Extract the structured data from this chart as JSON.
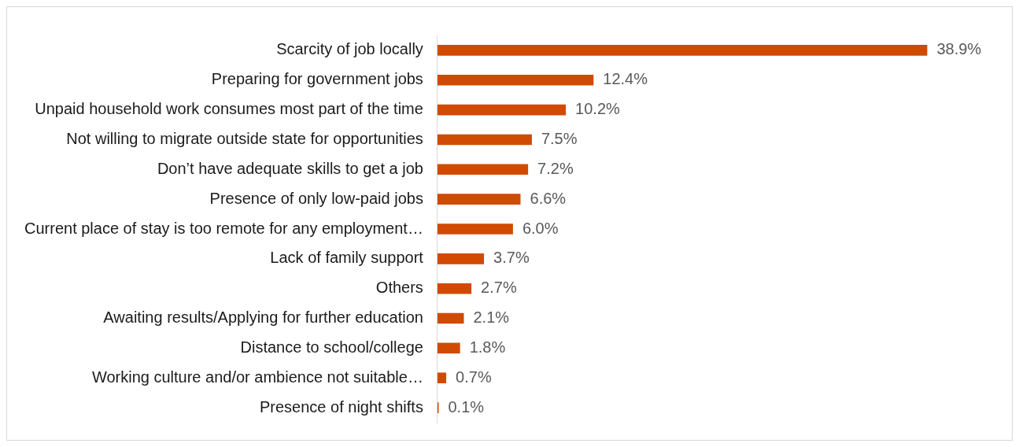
{
  "chart_data": {
    "type": "bar",
    "orientation": "horizontal",
    "categories": [
      "Scarcity of job locally",
      "Preparing for government jobs",
      "Unpaid household work consumes most part of the time",
      "Not willing to migrate outside state for opportunities",
      "Don’t have adequate skills to get a job",
      "Presence of only low-paid jobs",
      "Current place of stay is too remote for any employment…",
      "Lack of family support",
      "Others",
      "Awaiting results/Applying for further education",
      "Distance to school/college",
      "Working culture and/or ambience not suitable…",
      "Presence of night shifts"
    ],
    "values": [
      38.9,
      12.4,
      10.2,
      7.5,
      7.2,
      6.6,
      6.0,
      3.7,
      2.7,
      2.1,
      1.8,
      0.7,
      0.1
    ],
    "value_labels": [
      "38.9%",
      "12.4%",
      "10.2%",
      "7.5%",
      "7.2%",
      "6.6%",
      "6.0%",
      "3.7%",
      "2.7%",
      "2.1%",
      "1.8%",
      "0.7%",
      "0.1%"
    ],
    "color": "#d04a02",
    "tick_labels": "y"
  }
}
